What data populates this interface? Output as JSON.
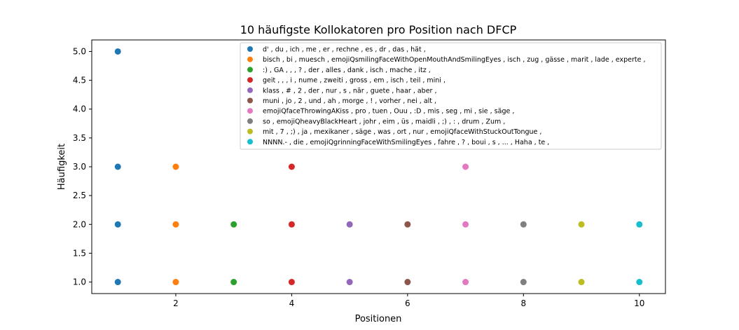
{
  "chart_data": {
    "type": "scatter",
    "title": "10 häufigste Kollokatoren pro Position nach DFCP",
    "xlabel": "Positionen",
    "ylabel": "Häufigkeit",
    "xlim": [
      0.55,
      10.45
    ],
    "ylim": [
      0.8,
      5.2
    ],
    "xticks": [
      2,
      4,
      6,
      8,
      10
    ],
    "xtick_labels": [
      "2",
      "4",
      "6",
      "8",
      "10"
    ],
    "yticks": [
      1.0,
      1.5,
      2.0,
      2.5,
      3.0,
      3.5,
      4.0,
      4.5,
      5.0
    ],
    "ytick_labels": [
      "1.0",
      "1.5",
      "2.0",
      "2.5",
      "3.0",
      "3.5",
      "4.0",
      "4.5",
      "5.0"
    ],
    "grid": false,
    "legend_position": "top-right",
    "series": [
      {
        "name": "d' , du , ich , me , er , rechne , es , dr , das , hät ,",
        "color": "#1f77b4",
        "x": [
          1,
          1,
          1,
          1
        ],
        "y": [
          5,
          3,
          2,
          1
        ]
      },
      {
        "name": "bisch , bi , muesch , emojiQsmilingFaceWithOpenMouthAndSmilingEyes , isch , zug , gässe , marit , lade , experte ,",
        "color": "#ff7f0e",
        "x": [
          2,
          2,
          2
        ],
        "y": [
          3,
          2,
          1
        ]
      },
      {
        "name": ":) , GA , , , ? , der , alles , dank , isch , mache , itz ,",
        "color": "#2ca02c",
        "x": [
          3,
          3
        ],
        "y": [
          2,
          1
        ]
      },
      {
        "name": "geit , , , i , nume , zweiti , gross , em , isch , teil , mini ,",
        "color": "#d62728",
        "x": [
          4,
          4,
          4
        ],
        "y": [
          3,
          2,
          1
        ]
      },
      {
        "name": "klass , # , 2 , der , nur , s , när , guete , haar , aber ,",
        "color": "#9467bd",
        "x": [
          5,
          5
        ],
        "y": [
          2,
          1
        ]
      },
      {
        "name": "muni , jo , 2 , und , ah , morge , ! , vorher , nei , alt ,",
        "color": "#8c564b",
        "x": [
          6,
          6
        ],
        "y": [
          2,
          1
        ]
      },
      {
        "name": "emojiQfaceThrowingAKiss , pro , tuen , Ouu , :D , mis , seg , mi , sie , säge ,",
        "color": "#e377c2",
        "x": [
          7,
          7,
          7
        ],
        "y": [
          3,
          2,
          1
        ]
      },
      {
        "name": "so , emojiQheavyBlackHeart , johr , eim , üs , maidli , ;) , : , drum , Zum ,",
        "color": "#7f7f7f",
        "x": [
          8,
          8
        ],
        "y": [
          2,
          1
        ]
      },
      {
        "name": "mit , 7 , ;) , ja , mexikaner , säge , was , ort , nur , emojiQfaceWithStuckOutTongue ,",
        "color": "#bcbd22",
        "x": [
          9,
          9
        ],
        "y": [
          2,
          1
        ]
      },
      {
        "name": "NNNN.- , die , emojiQgrinningFaceWithSmilingEyes , fahre , ? , boui , s , ... , Haha , te ,",
        "color": "#17becf",
        "x": [
          10,
          10
        ],
        "y": [
          2,
          1
        ]
      }
    ]
  }
}
